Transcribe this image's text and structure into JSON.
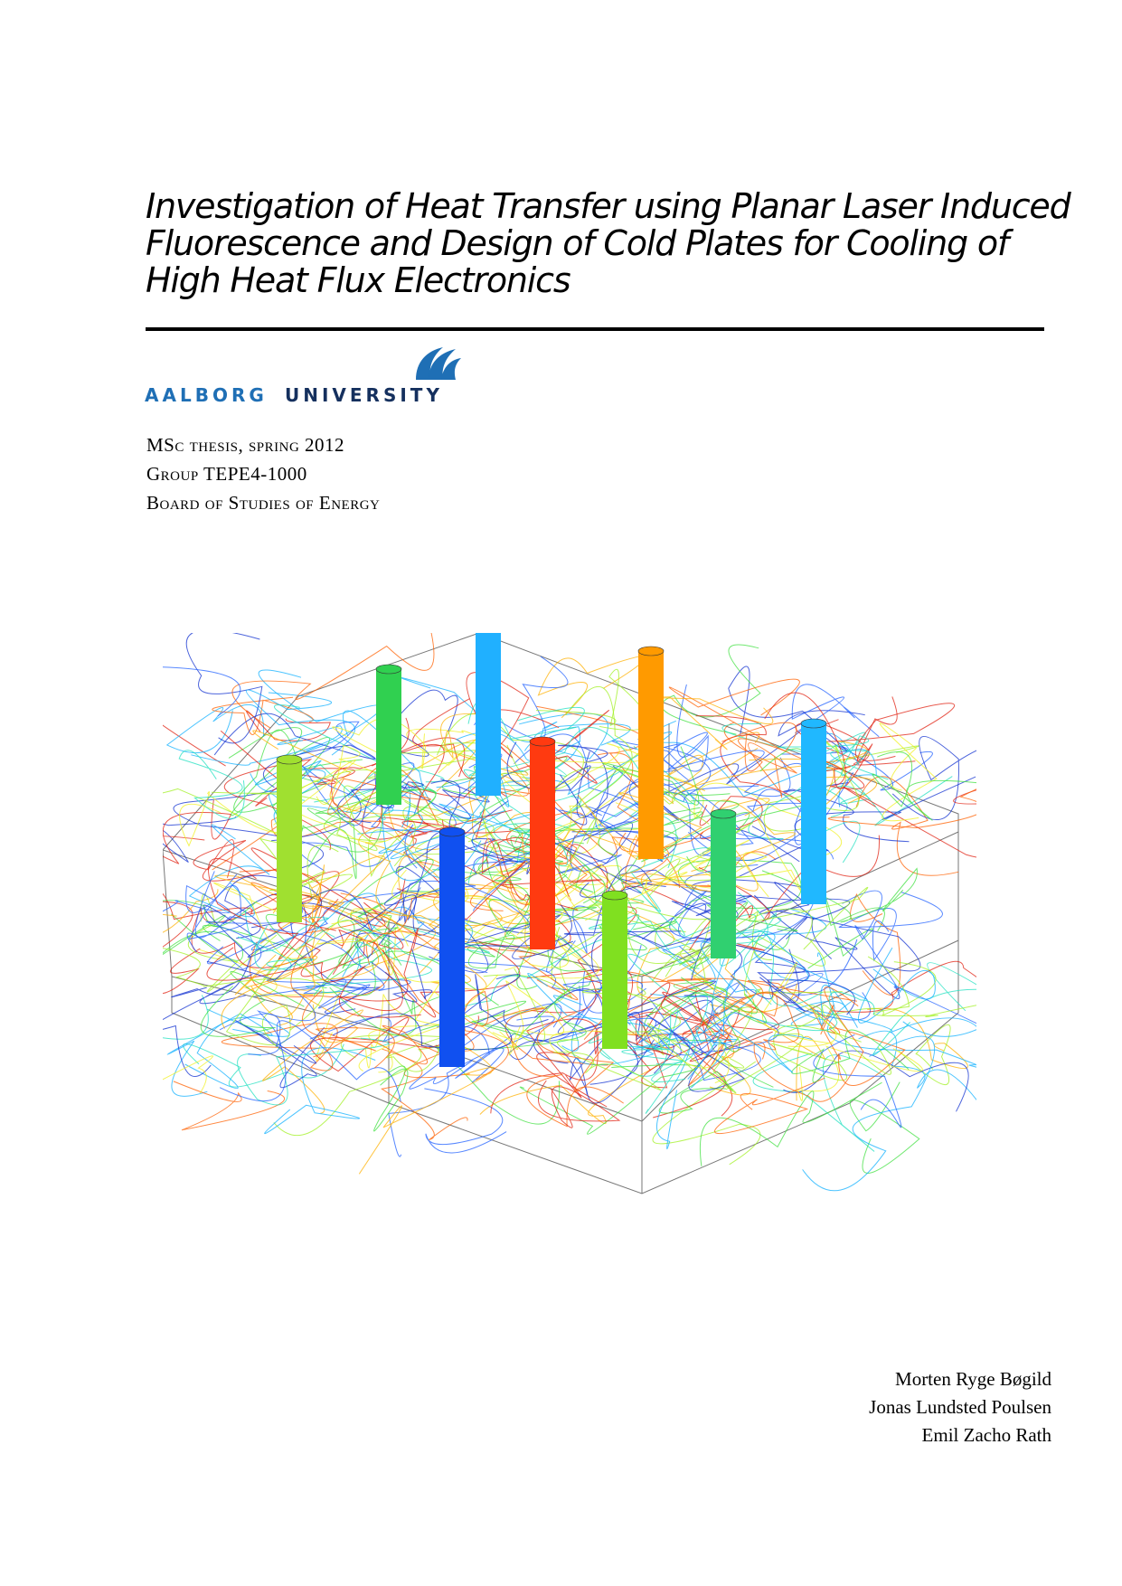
{
  "header": {
    "title_lines": [
      "Investigation of Heat Transfer using Planar Laser Induced",
      "Fluorescence and Design of Cold Plates for Cooling of",
      "High Heat Flux Electronics"
    ]
  },
  "logo": {
    "name_part1": "AALBORG",
    "name_part2": "UNIVERSITY"
  },
  "info": [
    "MSc thesis, spring 2012",
    "Group TEPE4-1000",
    "Board of Studies of Energy"
  ],
  "authors": [
    "Morten Ryge Bøgild",
    "Jonas Lundsted Poulsen",
    "Emil Zacho Rath"
  ]
}
